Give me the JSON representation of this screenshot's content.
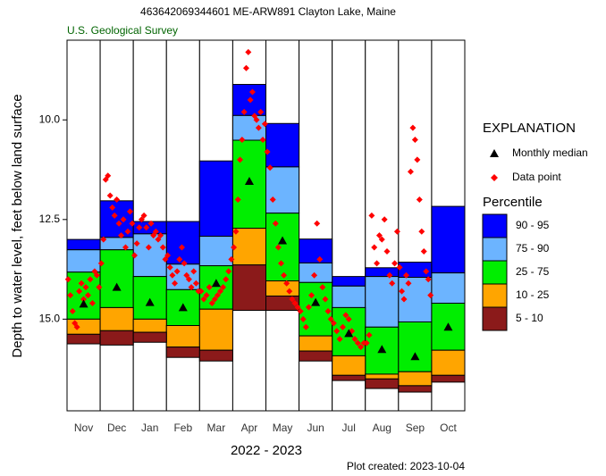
{
  "chart_data": {
    "type": "percentile",
    "title": "463642069344601 ME-ARW891 Clayton Lake, Maine",
    "subtitle": "U.S. Geological Survey",
    "x_label": "2022 - 2023",
    "y_label": "Depth to water level, feet below land surface",
    "footnote": "Plot created: 2023-10-04",
    "categories": [
      "Nov",
      "Dec",
      "Jan",
      "Feb",
      "Mar",
      "Apr",
      "May",
      "Jun",
      "Jul",
      "Aug",
      "Sep",
      "Oct"
    ],
    "ylim": [
      8.0,
      17.3
    ],
    "y_inverted": true,
    "yticks": [
      {
        "value": 10,
        "label": "10.0"
      },
      {
        "value": 12.5,
        "label": "12.5"
      },
      {
        "value": 15,
        "label": "15.0"
      }
    ],
    "legend_title": "EXPLANATION",
    "median_name": "Monthly median",
    "point_name": "Data point",
    "percentile_title": "Percentile",
    "series": [
      {
        "name": "90 - 95",
        "color": "#0000ff",
        "values": [
          [
            13.26,
            13.0
          ],
          [
            12.95,
            12.03
          ],
          [
            12.86,
            12.55
          ],
          [
            13.62,
            12.55
          ],
          [
            12.92,
            11.03
          ],
          [
            9.89,
            9.11
          ],
          [
            11.18,
            10.09
          ],
          [
            13.59,
            12.99
          ],
          [
            14.17,
            13.93
          ],
          [
            13.93,
            13.71
          ],
          [
            13.95,
            13.57
          ],
          [
            13.84,
            12.17
          ]
        ]
      },
      {
        "name": "75 - 90",
        "color": "#6cb4ff",
        "values": [
          [
            13.82,
            13.26
          ],
          [
            13.26,
            12.95
          ],
          [
            13.93,
            12.86
          ],
          [
            14.26,
            13.62
          ],
          [
            13.66,
            12.92
          ],
          [
            10.51,
            9.89
          ],
          [
            12.34,
            11.18
          ],
          [
            14.08,
            13.59
          ],
          [
            14.71,
            14.17
          ],
          [
            15.2,
            13.93
          ],
          [
            15.07,
            13.95
          ],
          [
            14.6,
            13.84
          ]
        ]
      },
      {
        "name": "25 - 75",
        "color": "#00ee00",
        "values": [
          [
            15.0,
            13.82
          ],
          [
            14.71,
            13.26
          ],
          [
            15.0,
            13.93
          ],
          [
            15.16,
            14.26
          ],
          [
            14.75,
            13.66
          ],
          [
            12.72,
            10.51
          ],
          [
            14.04,
            12.34
          ],
          [
            15.42,
            14.08
          ],
          [
            15.92,
            14.71
          ],
          [
            16.38,
            15.2
          ],
          [
            16.32,
            15.07
          ],
          [
            15.78,
            14.6
          ]
        ]
      },
      {
        "name": "10 - 25",
        "color": "#ffa500",
        "values": [
          [
            15.38,
            15.0
          ],
          [
            15.29,
            14.71
          ],
          [
            15.33,
            15.0
          ],
          [
            15.7,
            15.16
          ],
          [
            15.78,
            14.75
          ],
          [
            13.64,
            12.72
          ],
          [
            14.42,
            14.04
          ],
          [
            15.8,
            15.42
          ],
          [
            16.41,
            15.92
          ],
          [
            16.5,
            16.38
          ],
          [
            16.67,
            16.32
          ],
          [
            16.41,
            15.78
          ]
        ]
      },
      {
        "name": "5 - 10",
        "color": "#8b1a1a",
        "values": [
          [
            15.62,
            15.38
          ],
          [
            15.65,
            15.29
          ],
          [
            15.58,
            15.33
          ],
          [
            15.96,
            15.7
          ],
          [
            16.05,
            15.78
          ],
          [
            14.78,
            13.64
          ],
          [
            14.78,
            14.42
          ],
          [
            16.05,
            15.8
          ],
          [
            16.54,
            16.41
          ],
          [
            16.74,
            16.5
          ],
          [
            16.83,
            16.67
          ],
          [
            16.58,
            16.41
          ]
        ]
      }
    ],
    "medians": [
      14.62,
      14.2,
      14.58,
      14.71,
      14.1,
      11.54,
      13.03,
      14.58,
      15.36,
      15.76,
      15.94,
      15.2
    ],
    "median_color": "#000000",
    "point_color": "#ff0000",
    "points": [
      [
        14.0,
        14.4,
        14.8,
        15.1,
        15.2,
        14.3,
        14.1,
        14.5,
        14.2,
        14.4,
        14.0,
        14.6,
        13.8,
        13.9,
        14.2
      ],
      [
        13.6,
        13.0,
        11.5,
        11.4,
        11.9,
        12.2,
        12.4,
        12.0,
        12.6,
        12.9,
        12.5,
        13.2,
        12.8,
        12.3,
        12.6
      ],
      [
        13.4,
        13.1,
        12.7,
        12.5,
        12.4,
        12.7,
        13.2,
        12.6,
        12.9,
        12.8,
        13.0,
        12.9,
        13.2,
        13.5
      ],
      [
        13.4,
        13.7,
        13.9,
        14.1,
        13.8,
        13.5,
        13.2,
        13.6,
        13.9,
        14.0,
        14.2,
        13.8,
        14.1,
        14.3
      ],
      [
        14.3,
        14.5,
        14.4,
        14.2,
        14.6,
        14.5,
        14.4,
        14.3,
        14.2,
        14.0,
        13.8,
        13.5
      ],
      [
        13.2,
        12.8,
        12.0,
        11.0,
        10.5,
        9.8,
        8.7,
        8.3,
        9.5,
        9.3,
        9.9,
        10.0,
        10.2,
        9.8,
        10.5,
        10.1
      ],
      [
        10.8,
        11.2,
        12.0,
        12.6,
        13.2,
        13.6,
        13.9,
        14.1,
        14.3,
        14.5,
        14.6,
        14.7
      ],
      [
        14.8,
        15.0,
        15.2,
        14.7,
        14.4,
        13.9,
        12.6,
        13.5,
        14.2,
        14.5,
        14.8,
        15.0
      ],
      [
        15.1,
        15.3,
        15.5,
        15.2,
        14.9,
        15.0,
        15.3,
        15.5,
        15.6,
        15.7,
        15.6
      ],
      [
        15.6,
        15.4,
        12.4,
        13.2,
        13.6,
        12.9,
        13.0,
        12.5,
        13.3,
        13.9,
        14.1,
        13.6,
        12.8
      ],
      [
        13.7,
        14.3,
        14.5,
        13.9,
        14.1,
        11.3,
        10.2,
        10.5,
        11.0,
        12.0,
        12.8,
        13.3,
        13.8,
        14.0,
        14.4
      ],
      []
    ]
  }
}
